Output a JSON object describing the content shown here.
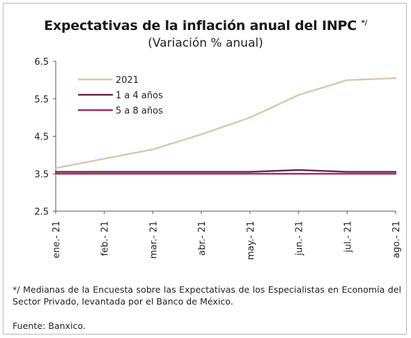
{
  "header": {
    "title": "Expectativas de la inflación anual del INPC",
    "title_marker": "*/",
    "subtitle": "(Variación % anual)"
  },
  "chart_data": {
    "type": "line",
    "title": "Expectativas de la inflación anual del INPC */",
    "subtitle": "(Variación % anual)",
    "categories": [
      "ene.- 21",
      "feb.- 21",
      "mar.- 21",
      "abr.- 21",
      "may.- 21",
      "jun.- 21",
      "jul.- 21",
      "ago.- 21"
    ],
    "series": [
      {
        "name": "2021",
        "color": "#d8c7ad",
        "values": [
          3.65,
          3.9,
          4.15,
          4.55,
          5.0,
          5.6,
          6.0,
          6.05
        ]
      },
      {
        "name": "1 a 4 años",
        "color": "#6b2346",
        "values": [
          3.55,
          3.55,
          3.55,
          3.55,
          3.55,
          3.6,
          3.55,
          3.55
        ]
      },
      {
        "name": "5 a 8 años",
        "color": "#a3285a",
        "values": [
          3.5,
          3.5,
          3.5,
          3.5,
          3.5,
          3.5,
          3.5,
          3.5
        ]
      }
    ],
    "yticks": [
      "2.5",
      "3.5",
      "4.5",
      "5.5",
      "6.5"
    ],
    "ylim": [
      2.5,
      6.5
    ],
    "grid": false,
    "legend_position": "top-left"
  },
  "footnote": {
    "text": "*/ Medianas de la Encuesta sobre las Expectativas de los Especialistas en Economía del Sector Privado, levantada por el Banco de México.",
    "source": "Fuente: Banxico."
  }
}
